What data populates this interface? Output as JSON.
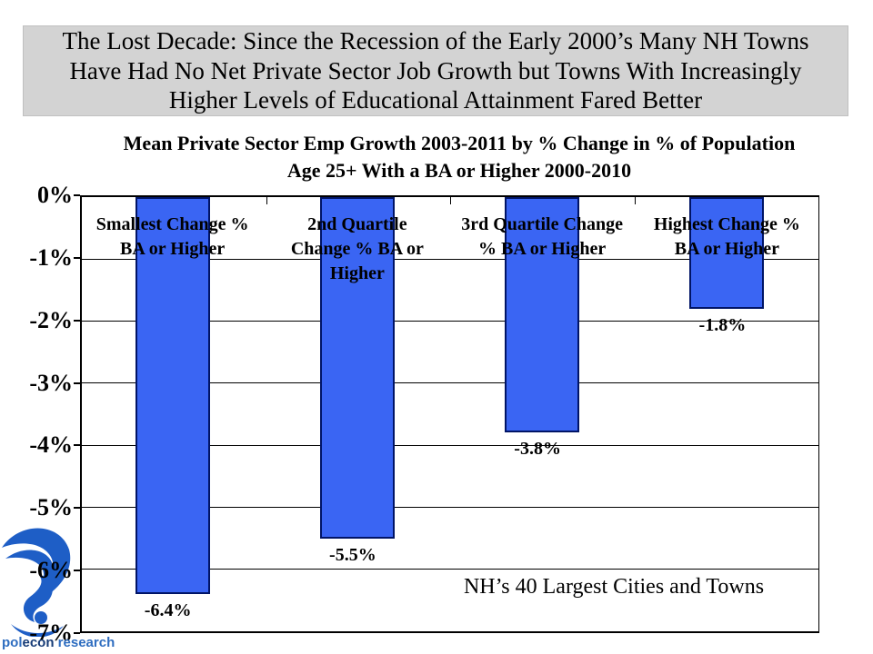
{
  "slide": {
    "title": "The Lost Decade: Since the Recession of the Early 2000’s Many NH Towns Have Had No Net Private Sector Job Growth but Towns With Increasingly Higher Levels of Educational Attainment Fared Better"
  },
  "chart_data": {
    "type": "bar",
    "title": "Mean Private Sector Emp Growth 2003-2011 by % Change in % of Population Age 25+ With a BA or Higher 2000-2010",
    "ylabel": "",
    "xlabel": "",
    "ylim": [
      -7,
      0
    ],
    "grid": true,
    "legend": "none",
    "y_tick_labels": [
      "0%",
      "-1%",
      "-2%",
      "-3%",
      "-4%",
      "-5%",
      "-6%",
      "-7%"
    ],
    "categories": [
      {
        "label": "Smallest Change % BA or Higher",
        "lines": [
          "Smallest Change %",
          "BA or Higher"
        ],
        "value": -6.4,
        "data_label": "-6.4%"
      },
      {
        "label": "2nd Quartile Change % BA or Higher",
        "lines": [
          "2nd Quartile",
          "Change % BA or",
          "Higher"
        ],
        "value": -5.5,
        "data_label": "-5.5%"
      },
      {
        "label": "3rd Quartile Change % BA or Higher",
        "lines": [
          "3rd Quartile Change",
          "% BA or Higher"
        ],
        "value": -3.8,
        "data_label": "-3.8%"
      },
      {
        "label": "Highest Change % BA or Higher",
        "lines": [
          "Highest Change %",
          "BA or Higher"
        ],
        "value": -1.8,
        "data_label": "-1.8%"
      }
    ],
    "annotation": "NH’s 40 Largest Cities and Towns"
  },
  "colors": {
    "bar_fill": "#3A65F3",
    "bar_border": "#001466",
    "title_box_bg": "#D3D3D3",
    "logo_blue": "#1E5EC6",
    "logo_navy": "#173C77",
    "logo_mid_blue": "#2E6DC0"
  },
  "logo": {
    "wordmark_part1": "pol",
    "wordmark_part2": "econ",
    "wordmark_part3": " research"
  }
}
